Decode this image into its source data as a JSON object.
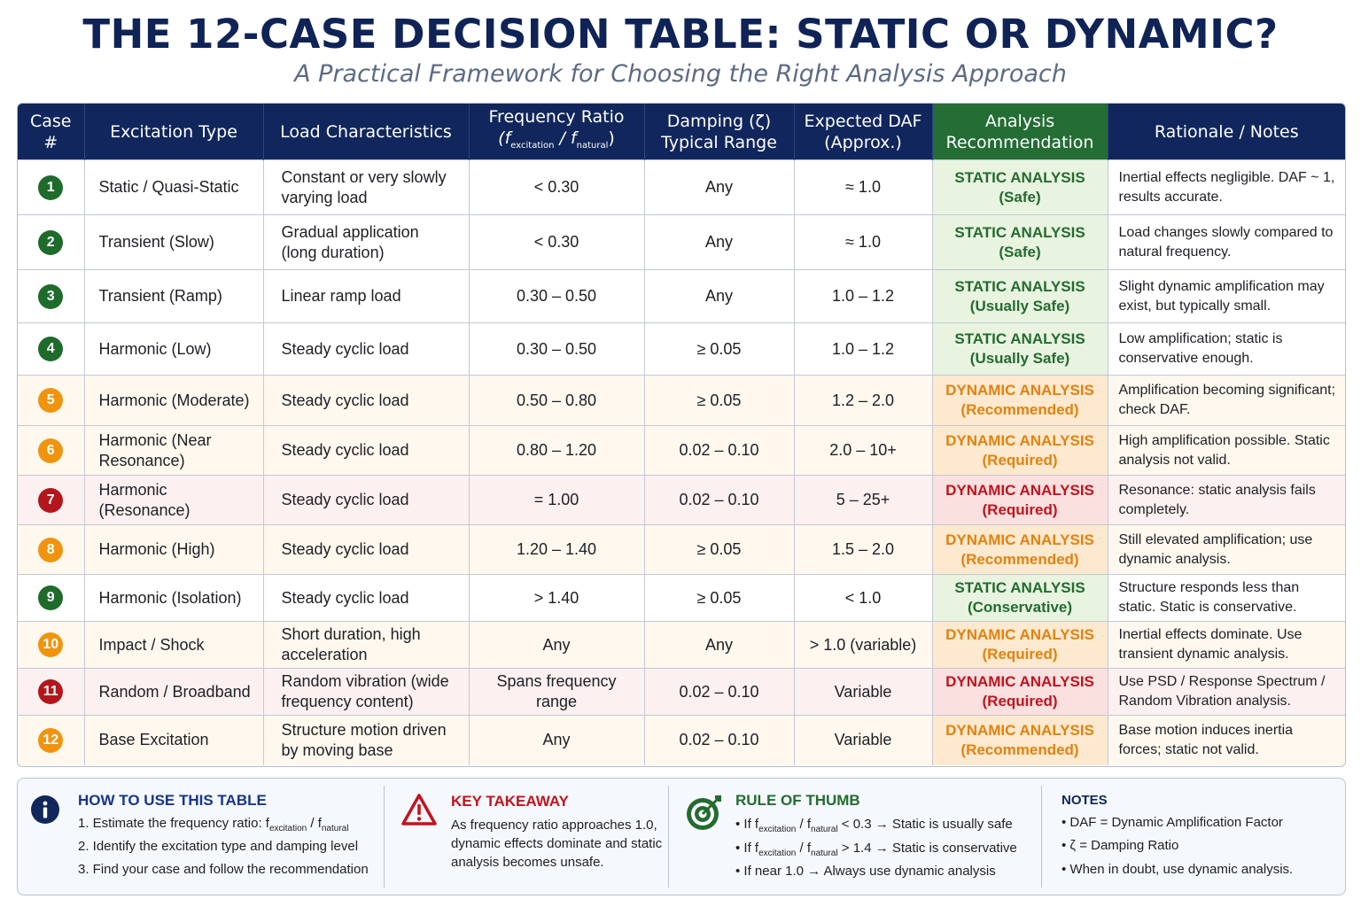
{
  "title": "THE 12-CASE DECISION TABLE: STATIC OR DYNAMIC?",
  "subtitle": "A Practical Framework for Choosing the Right Analysis Approach",
  "table": {
    "headers": {
      "case": [
        "Case",
        "#"
      ],
      "excitation": "Excitation Type",
      "load": "Load Characteristics",
      "freq": [
        "Frequency Ratio",
        "(f",
        "excitation",
        " / f",
        "natural",
        ")"
      ],
      "damping": [
        "Damping (ζ)",
        "Typical Range"
      ],
      "daf": [
        "Expected DAF",
        "(Approx.)"
      ],
      "analysis": [
        "Analysis",
        "Recommendation"
      ],
      "notes": "Rationale / Notes"
    },
    "rows": [
      {
        "case": "1",
        "excitation": "Static / Quasi-Static",
        "load": "Constant or very slowly varying load",
        "freq": "< 0.30",
        "damping": "Any",
        "daf": "≈ 1.0",
        "rec1": "STATIC ANALYSIS",
        "rec2": "(Safe)",
        "level": "green",
        "notes": "Inertial effects negligible. DAF ~ 1, results accurate."
      },
      {
        "case": "2",
        "excitation": "Transient (Slow)",
        "load": "Gradual application (long duration)",
        "freq": "< 0.30",
        "damping": "Any",
        "daf": "≈ 1.0",
        "rec1": "STATIC ANALYSIS",
        "rec2": "(Safe)",
        "level": "green",
        "notes": "Load changes slowly compared to natural frequency."
      },
      {
        "case": "3",
        "excitation": "Transient (Ramp)",
        "load": "Linear ramp load",
        "freq": "0.30 – 0.50",
        "damping": "Any",
        "daf": "1.0 – 1.2",
        "rec1": "STATIC ANALYSIS",
        "rec2": "(Usually Safe)",
        "level": "green",
        "notes": "Slight dynamic amplification may exist, but typically small."
      },
      {
        "case": "4",
        "excitation": "Harmonic (Low)",
        "load": "Steady cyclic load",
        "freq": "0.30 – 0.50",
        "damping": "≥ 0.05",
        "daf": "1.0 – 1.2",
        "rec1": "STATIC ANALYSIS",
        "rec2": "(Usually Safe)",
        "level": "green",
        "notes": "Low amplification; static is conservative enough."
      },
      {
        "case": "5",
        "excitation": "Harmonic (Moderate)",
        "load": "Steady cyclic load",
        "freq": "0.50 – 0.80",
        "damping": "≥ 0.05",
        "daf": "1.2 – 2.0",
        "rec1": "DYNAMIC ANALYSIS",
        "rec2": "(Recommended)",
        "level": "orange",
        "notes": "Amplification becoming significant; check DAF."
      },
      {
        "case": "6",
        "excitation": "Harmonic (Near Resonance)",
        "load": "Steady cyclic load",
        "freq": "0.80 – 1.20",
        "damping": "0.02 – 0.10",
        "daf": "2.0 – 10+",
        "rec1": "DYNAMIC ANALYSIS",
        "rec2": "(Required)",
        "level": "orange",
        "notes": "High amplification possible. Static analysis not valid."
      },
      {
        "case": "7",
        "excitation": "Harmonic (Resonance)",
        "load": "Steady cyclic load",
        "freq": "= 1.00",
        "damping": "0.02 – 0.10",
        "daf": "5 – 25+",
        "rec1": "DYNAMIC ANALYSIS",
        "rec2": "(Required)",
        "level": "red",
        "notes": "Resonance: static analysis fails completely."
      },
      {
        "case": "8",
        "excitation": "Harmonic (High)",
        "load": "Steady cyclic load",
        "freq": "1.20 – 1.40",
        "damping": "≥ 0.05",
        "daf": "1.5 – 2.0",
        "rec1": "DYNAMIC ANALYSIS",
        "rec2": "(Recommended)",
        "level": "orange",
        "notes": "Still elevated amplification; use dynamic analysis."
      },
      {
        "case": "9",
        "excitation": "Harmonic (Isolation)",
        "load": "Steady cyclic load",
        "freq": "> 1.40",
        "damping": "≥ 0.05",
        "daf": "< 1.0",
        "rec1": "STATIC ANALYSIS",
        "rec2": "(Conservative)",
        "level": "green",
        "notes": "Structure responds less than static. Static is conservative."
      },
      {
        "case": "10",
        "excitation": "Impact / Shock",
        "load": "Short duration,  high acceleration",
        "freq": "Any",
        "damping": "Any",
        "daf": "> 1.0 (variable)",
        "rec1": "DYNAMIC ANALYSIS",
        "rec2": "(Required)",
        "level": "orange",
        "notes": "Inertial effects dominate. Use transient dynamic analysis."
      },
      {
        "case": "11",
        "excitation": "Random / Broadband",
        "load": "Random vibration (wide frequency content)",
        "freq": "Spans frequency range",
        "damping": "0.02 – 0.10",
        "daf": "Variable",
        "rec1": "DYNAMIC ANALYSIS",
        "rec2": "(Required)",
        "level": "red",
        "notes": "Use PSD / Response Spectrum / Random Vibration analysis."
      },
      {
        "case": "12",
        "excitation": "Base Excitation",
        "load": "Structure motion driven by moving base",
        "freq": "Any",
        "damping": "0.02 – 0.10",
        "daf": "Variable",
        "rec1": "DYNAMIC ANALYSIS",
        "rec2": "(Recommended)",
        "level": "orange",
        "notes": "Base motion induces inertia forces; static not valid."
      }
    ]
  },
  "footer": {
    "how": {
      "icon": "info-icon",
      "title": "HOW TO USE THIS TABLE",
      "l1a": "1.  Estimate the frequency ratio: f",
      "l1b": "excitation",
      "l1c": " / f",
      "l1d": "natural",
      "l2": "2.  Identify the excitation type and damping level",
      "l3": "3.  Find your case and follow the recommendation"
    },
    "key": {
      "icon": "warning-icon",
      "title": "KEY TAKEAWAY",
      "l1": "As frequency ratio approaches 1.0,",
      "l2": "dynamic effects dominate and static",
      "l3": "analysis becomes unsafe."
    },
    "rule": {
      "icon": "target-icon",
      "title": "RULE OF THUMB",
      "r1a": "•  If f",
      "r1b": "excitation",
      "r1c": " / f",
      "r1d": "natural",
      "r1e": " < 0.3 → Static is usually safe",
      "r2a": "•  If f",
      "r2b": "excitation",
      "r2c": " / f",
      "r2d": "natural",
      "r2e": " > 1.4 → Static is conservative",
      "r3": "•  If near 1.0 → Always use dynamic analysis"
    },
    "notes": {
      "title": "NOTES",
      "n1": "•  DAF = Dynamic Amplification Factor",
      "n2": "•  ζ  = Damping Ratio",
      "n3": "•  When in doubt, use dynamic analysis."
    }
  },
  "colors": {
    "navy": "#10265c",
    "green": "#236b2f",
    "orange": "#e3810e",
    "red": "#c3131d"
  }
}
